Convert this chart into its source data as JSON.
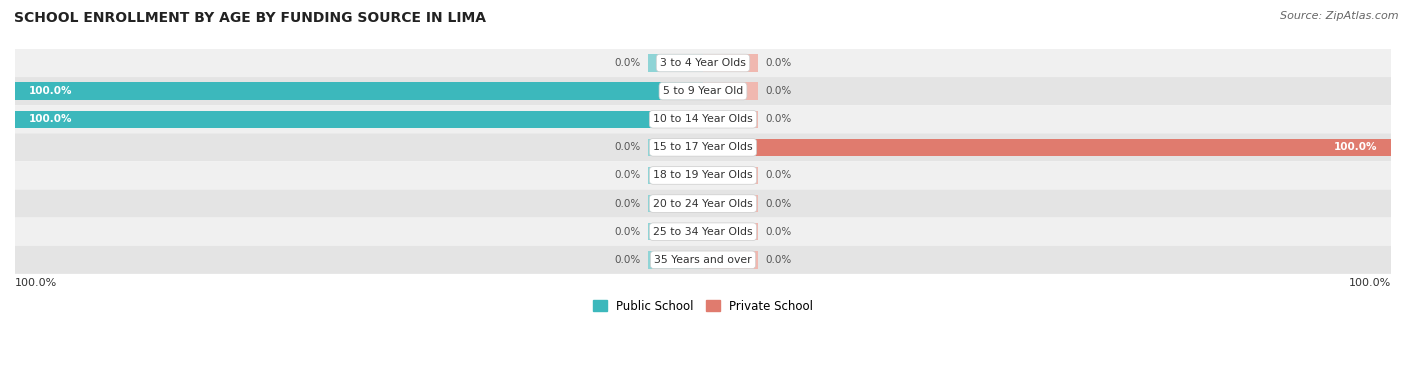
{
  "title": "SCHOOL ENROLLMENT BY AGE BY FUNDING SOURCE IN LIMA",
  "source": "Source: ZipAtlas.com",
  "categories": [
    "3 to 4 Year Olds",
    "5 to 9 Year Old",
    "10 to 14 Year Olds",
    "15 to 17 Year Olds",
    "18 to 19 Year Olds",
    "20 to 24 Year Olds",
    "25 to 34 Year Olds",
    "35 Years and over"
  ],
  "public_values": [
    0.0,
    100.0,
    100.0,
    0.0,
    0.0,
    0.0,
    0.0,
    0.0
  ],
  "private_values": [
    0.0,
    0.0,
    0.0,
    100.0,
    0.0,
    0.0,
    0.0,
    0.0
  ],
  "public_color": "#3cb8bc",
  "private_color": "#e07b6e",
  "public_color_light": "#8fd4d6",
  "private_color_light": "#f0b8b0",
  "row_bg_even": "#f0f0f0",
  "row_bg_odd": "#e4e4e4",
  "stub_size": 8,
  "bar_height": 0.62,
  "figsize": [
    14.06,
    3.77
  ],
  "dpi": 100,
  "xlim_left": -100,
  "xlim_right": 100
}
